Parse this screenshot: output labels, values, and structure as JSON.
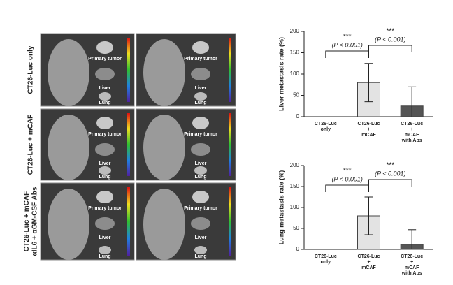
{
  "image_panel": {
    "rows": [
      "CT26-Luc only",
      "CT26-Luc + mCAF",
      "CT26-Luc + mCAF\nαIL6 + αGM-CSF Abs"
    ],
    "organ_labels": [
      "Primary tumor",
      "Liver",
      "Lung"
    ]
  },
  "chart_data": [
    {
      "type": "bar",
      "y_label": "Liver metastasis rate (%)",
      "categories": [
        "CT26-Luc\nonly",
        "CT26-Luc\n+\nmCAF",
        "CT26-Luc\n+\nmCAF\nwith Abs"
      ],
      "values": [
        0,
        80,
        25
      ],
      "errors": [
        null,
        45,
        45
      ],
      "colors": [
        "#e3e3e3",
        "#e3e3e3",
        "#555555"
      ],
      "ylim": [
        0,
        200
      ],
      "yticks": [
        0,
        50,
        100,
        150,
        200
      ],
      "annotations": [
        "***",
        "(P < 0.001)",
        "***",
        "(P < 0.001)"
      ]
    },
    {
      "type": "bar",
      "y_label": "Lung metastasis rate (%)",
      "categories": [
        "CT26-Luc\nonly",
        "CT26-Luc\n+\nmCAF",
        "CT26-Luc\n+\nmCAF\nwith Abs"
      ],
      "values": [
        0,
        80,
        12
      ],
      "errors": [
        null,
        45,
        35
      ],
      "colors": [
        "#e3e3e3",
        "#e3e3e3",
        "#555555"
      ],
      "ylim": [
        0,
        200
      ],
      "yticks": [
        0,
        50,
        100,
        150,
        200
      ],
      "annotations": [
        "***",
        "(P < 0.001)",
        "***",
        "(P < 0.001)"
      ]
    }
  ]
}
